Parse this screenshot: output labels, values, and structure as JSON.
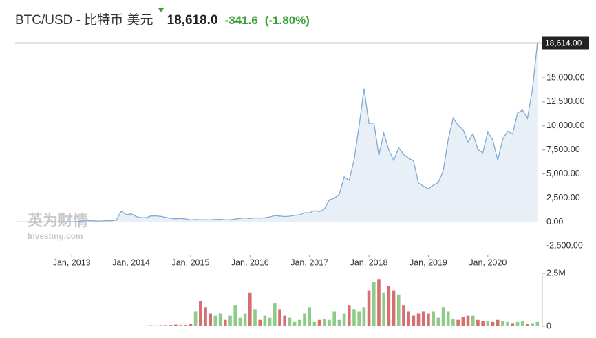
{
  "chart_data": {
    "type": "area",
    "title": "BTC/USD - 比特币 美元",
    "price": "18,618.0",
    "change": "-341.6",
    "change_pct": "(-1.80%)",
    "change_color": "#3aa03a",
    "watermark": {
      "brand": "英为财情",
      "site": "Investing.com"
    },
    "x": [
      "2012-02",
      "2012-03",
      "2012-04",
      "2012-05",
      "2012-06",
      "2012-07",
      "2012-08",
      "2012-09",
      "2012-10",
      "2012-11",
      "2012-12",
      "2013-01",
      "2013-02",
      "2013-03",
      "2013-04",
      "2013-05",
      "2013-06",
      "2013-07",
      "2013-08",
      "2013-09",
      "2013-10",
      "2013-11",
      "2013-12",
      "2014-01",
      "2014-02",
      "2014-03",
      "2014-04",
      "2014-05",
      "2014-06",
      "2014-07",
      "2014-08",
      "2014-09",
      "2014-10",
      "2014-11",
      "2014-12",
      "2015-01",
      "2015-02",
      "2015-03",
      "2015-04",
      "2015-05",
      "2015-06",
      "2015-07",
      "2015-08",
      "2015-09",
      "2015-10",
      "2015-11",
      "2015-12",
      "2016-01",
      "2016-02",
      "2016-03",
      "2016-04",
      "2016-05",
      "2016-06",
      "2016-07",
      "2016-08",
      "2016-09",
      "2016-10",
      "2016-11",
      "2016-12",
      "2017-01",
      "2017-02",
      "2017-03",
      "2017-04",
      "2017-05",
      "2017-06",
      "2017-07",
      "2017-08",
      "2017-09",
      "2017-10",
      "2017-11",
      "2017-12",
      "2018-01",
      "2018-02",
      "2018-03",
      "2018-04",
      "2018-05",
      "2018-06",
      "2018-07",
      "2018-08",
      "2018-09",
      "2018-10",
      "2018-11",
      "2018-12",
      "2019-01",
      "2019-02",
      "2019-03",
      "2019-04",
      "2019-05",
      "2019-06",
      "2019-07",
      "2019-08",
      "2019-09",
      "2019-10",
      "2019-11",
      "2019-12",
      "2020-01",
      "2020-02",
      "2020-03",
      "2020-04",
      "2020-05",
      "2020-06",
      "2020-07",
      "2020-08",
      "2020-09",
      "2020-10",
      "2020-11"
    ],
    "series": [
      {
        "name": "BTC/USD",
        "color": "#7eaad6",
        "fill": "#e8eff6",
        "values": [
          4.9,
          4.9,
          5,
          5.2,
          6.7,
          9.4,
          10,
          12.4,
          11.2,
          12.6,
          13.5,
          20,
          33,
          93,
          139,
          129,
          97,
          106,
          135,
          133,
          198,
          1130,
          750,
          850,
          570,
          450,
          450,
          630,
          640,
          590,
          480,
          390,
          340,
          380,
          320,
          220,
          255,
          245,
          236,
          230,
          264,
          285,
          230,
          237,
          312,
          378,
          430,
          370,
          437,
          416,
          448,
          531,
          673,
          624,
          575,
          609,
          700,
          742,
          963,
          970,
          1190,
          1080,
          1350,
          2300,
          2480,
          2870,
          4700,
          4340,
          6450,
          9950,
          13850,
          10260,
          10300,
          6930,
          9240,
          7500,
          6400,
          7730,
          7030,
          6630,
          6370,
          4040,
          3740,
          3460,
          3820,
          4100,
          5320,
          8570,
          10820,
          10080,
          9600,
          8300,
          9200,
          7550,
          7200,
          9350,
          8540,
          6410,
          8630,
          9450,
          9140,
          11340,
          11650,
          10780,
          13800,
          18614
        ]
      }
    ],
    "xlim": [
      "2012-02",
      "2020-12"
    ],
    "xticks": [
      {
        "value": "2013-01",
        "label": "Jan, 2013"
      },
      {
        "value": "2014-01",
        "label": "Jan, 2014"
      },
      {
        "value": "2015-01",
        "label": "Jan, 2015"
      },
      {
        "value": "2016-01",
        "label": "Jan, 2016"
      },
      {
        "value": "2017-01",
        "label": "Jan, 2017"
      },
      {
        "value": "2018-01",
        "label": "Jan, 2018"
      },
      {
        "value": "2019-01",
        "label": "Jan, 2019"
      },
      {
        "value": "2020-01",
        "label": "Jan, 2020"
      }
    ],
    "ylim": [
      -3400,
      18650
    ],
    "yticks": [
      {
        "value": -2500,
        "label": "-2,500.00"
      },
      {
        "value": 0,
        "label": "0.00"
      },
      {
        "value": 2500,
        "label": "2,500.00"
      },
      {
        "value": 5000,
        "label": "5,000.00"
      },
      {
        "value": 7500,
        "label": "7,500.00"
      },
      {
        "value": 10000,
        "label": "10,000.00"
      },
      {
        "value": 12500,
        "label": "12,500.00"
      },
      {
        "value": 15000,
        "label": "15,000.00"
      }
    ],
    "last_price": {
      "value": 18614,
      "label": "18,614.00"
    },
    "volume": {
      "up_color": "#8fca8a",
      "down_color": "#d66f6f",
      "ylim": [
        0,
        2500000
      ],
      "yticks": [
        0,
        {
          "value": 2500000,
          "label": "2.5M"
        }
      ],
      "values": [
        null,
        null,
        null,
        null,
        null,
        null,
        null,
        null,
        null,
        null,
        null,
        null,
        null,
        null,
        null,
        null,
        null,
        null,
        null,
        null,
        null,
        null,
        null,
        null,
        null,
        null,
        40000,
        50000,
        40000,
        50000,
        50000,
        60000,
        80000,
        70000,
        60000,
        120000,
        700000,
        1200000,
        900000,
        600000,
        500000,
        600000,
        300000,
        500000,
        1000000,
        400000,
        600000,
        1600000,
        800000,
        300000,
        500000,
        400000,
        1100000,
        800000,
        500000,
        400000,
        200000,
        300000,
        600000,
        900000,
        200000,
        300000,
        350000,
        300000,
        700000,
        300000,
        600000,
        1000000,
        800000,
        700000,
        900000,
        1700000,
        2100000,
        2200000,
        1600000,
        1900000,
        1700000,
        1500000,
        1000000,
        700000,
        500000,
        600000,
        700000,
        600000,
        700000,
        400000,
        900000,
        700000,
        350000,
        300000,
        450000,
        500000,
        500000,
        300000,
        250000,
        250000,
        200000,
        300000,
        250000,
        200000,
        150000,
        200000,
        250000,
        120000,
        150000,
        200000
      ]
    }
  }
}
